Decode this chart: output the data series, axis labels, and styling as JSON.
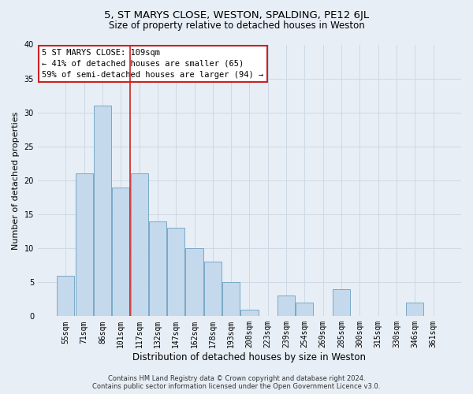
{
  "title1": "5, ST MARYS CLOSE, WESTON, SPALDING, PE12 6JL",
  "title2": "Size of property relative to detached houses in Weston",
  "xlabel": "Distribution of detached houses by size in Weston",
  "ylabel": "Number of detached properties",
  "categories": [
    "55sqm",
    "71sqm",
    "86sqm",
    "101sqm",
    "117sqm",
    "132sqm",
    "147sqm",
    "162sqm",
    "178sqm",
    "193sqm",
    "208sqm",
    "223sqm",
    "239sqm",
    "254sqm",
    "269sqm",
    "285sqm",
    "300sqm",
    "315sqm",
    "330sqm",
    "346sqm",
    "361sqm"
  ],
  "values": [
    6,
    21,
    31,
    19,
    21,
    14,
    13,
    10,
    8,
    5,
    1,
    0,
    3,
    2,
    0,
    4,
    0,
    0,
    0,
    2,
    0
  ],
  "bar_color": "#c5d9ec",
  "bar_edge_color": "#6a9fc0",
  "grid_color": "#cdd9e5",
  "background_color": "#e8eef5",
  "annotation_text": "5 ST MARYS CLOSE: 109sqm\n← 41% of detached houses are smaller (65)\n59% of semi-detached houses are larger (94) →",
  "annotation_box_color": "#ffffff",
  "annotation_box_edge": "#cc2222",
  "vline_color": "#cc2222",
  "vline_x": 3.5,
  "ylim": [
    0,
    40
  ],
  "yticks": [
    0,
    5,
    10,
    15,
    20,
    25,
    30,
    35,
    40
  ],
  "footer1": "Contains HM Land Registry data © Crown copyright and database right 2024.",
  "footer2": "Contains public sector information licensed under the Open Government Licence v3.0.",
  "title1_fontsize": 9.5,
  "title2_fontsize": 8.5,
  "tick_fontsize": 7,
  "ylabel_fontsize": 8,
  "xlabel_fontsize": 8.5,
  "annotation_fontsize": 7.5,
  "footer_fontsize": 6
}
